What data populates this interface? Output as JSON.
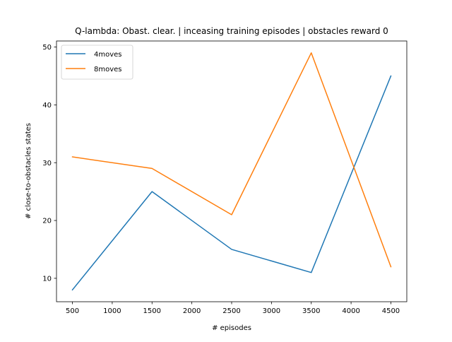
{
  "chart_data": {
    "type": "line",
    "title": "Q-lambda: Obast. clear. | inceasing training episodes | obstacles reward 0",
    "xlabel": "# episodes",
    "ylabel": "# close-to-obstacles states",
    "x": [
      500,
      1500,
      2500,
      3500,
      4500
    ],
    "xlim": [
      300,
      4700
    ],
    "ylim": [
      5.95,
      51.05
    ],
    "xticks": [
      500,
      1000,
      1500,
      2000,
      2500,
      3000,
      3500,
      4000,
      4500
    ],
    "xtick_labels": [
      "500",
      "1000",
      "1500",
      "2000",
      "2500",
      "3000",
      "3500",
      "4000",
      "4500"
    ],
    "yticks": [
      10,
      20,
      30,
      40,
      50
    ],
    "ytick_labels": [
      "10",
      "20",
      "30",
      "40",
      "50"
    ],
    "grid": false,
    "legend_position": "upper-left",
    "series": [
      {
        "name": "4moves",
        "color": "#1f77b4",
        "values": [
          8,
          25,
          15,
          11,
          45
        ]
      },
      {
        "name": "8moves",
        "color": "#ff7f0e",
        "values": [
          31,
          29,
          21,
          49,
          12
        ]
      }
    ]
  }
}
